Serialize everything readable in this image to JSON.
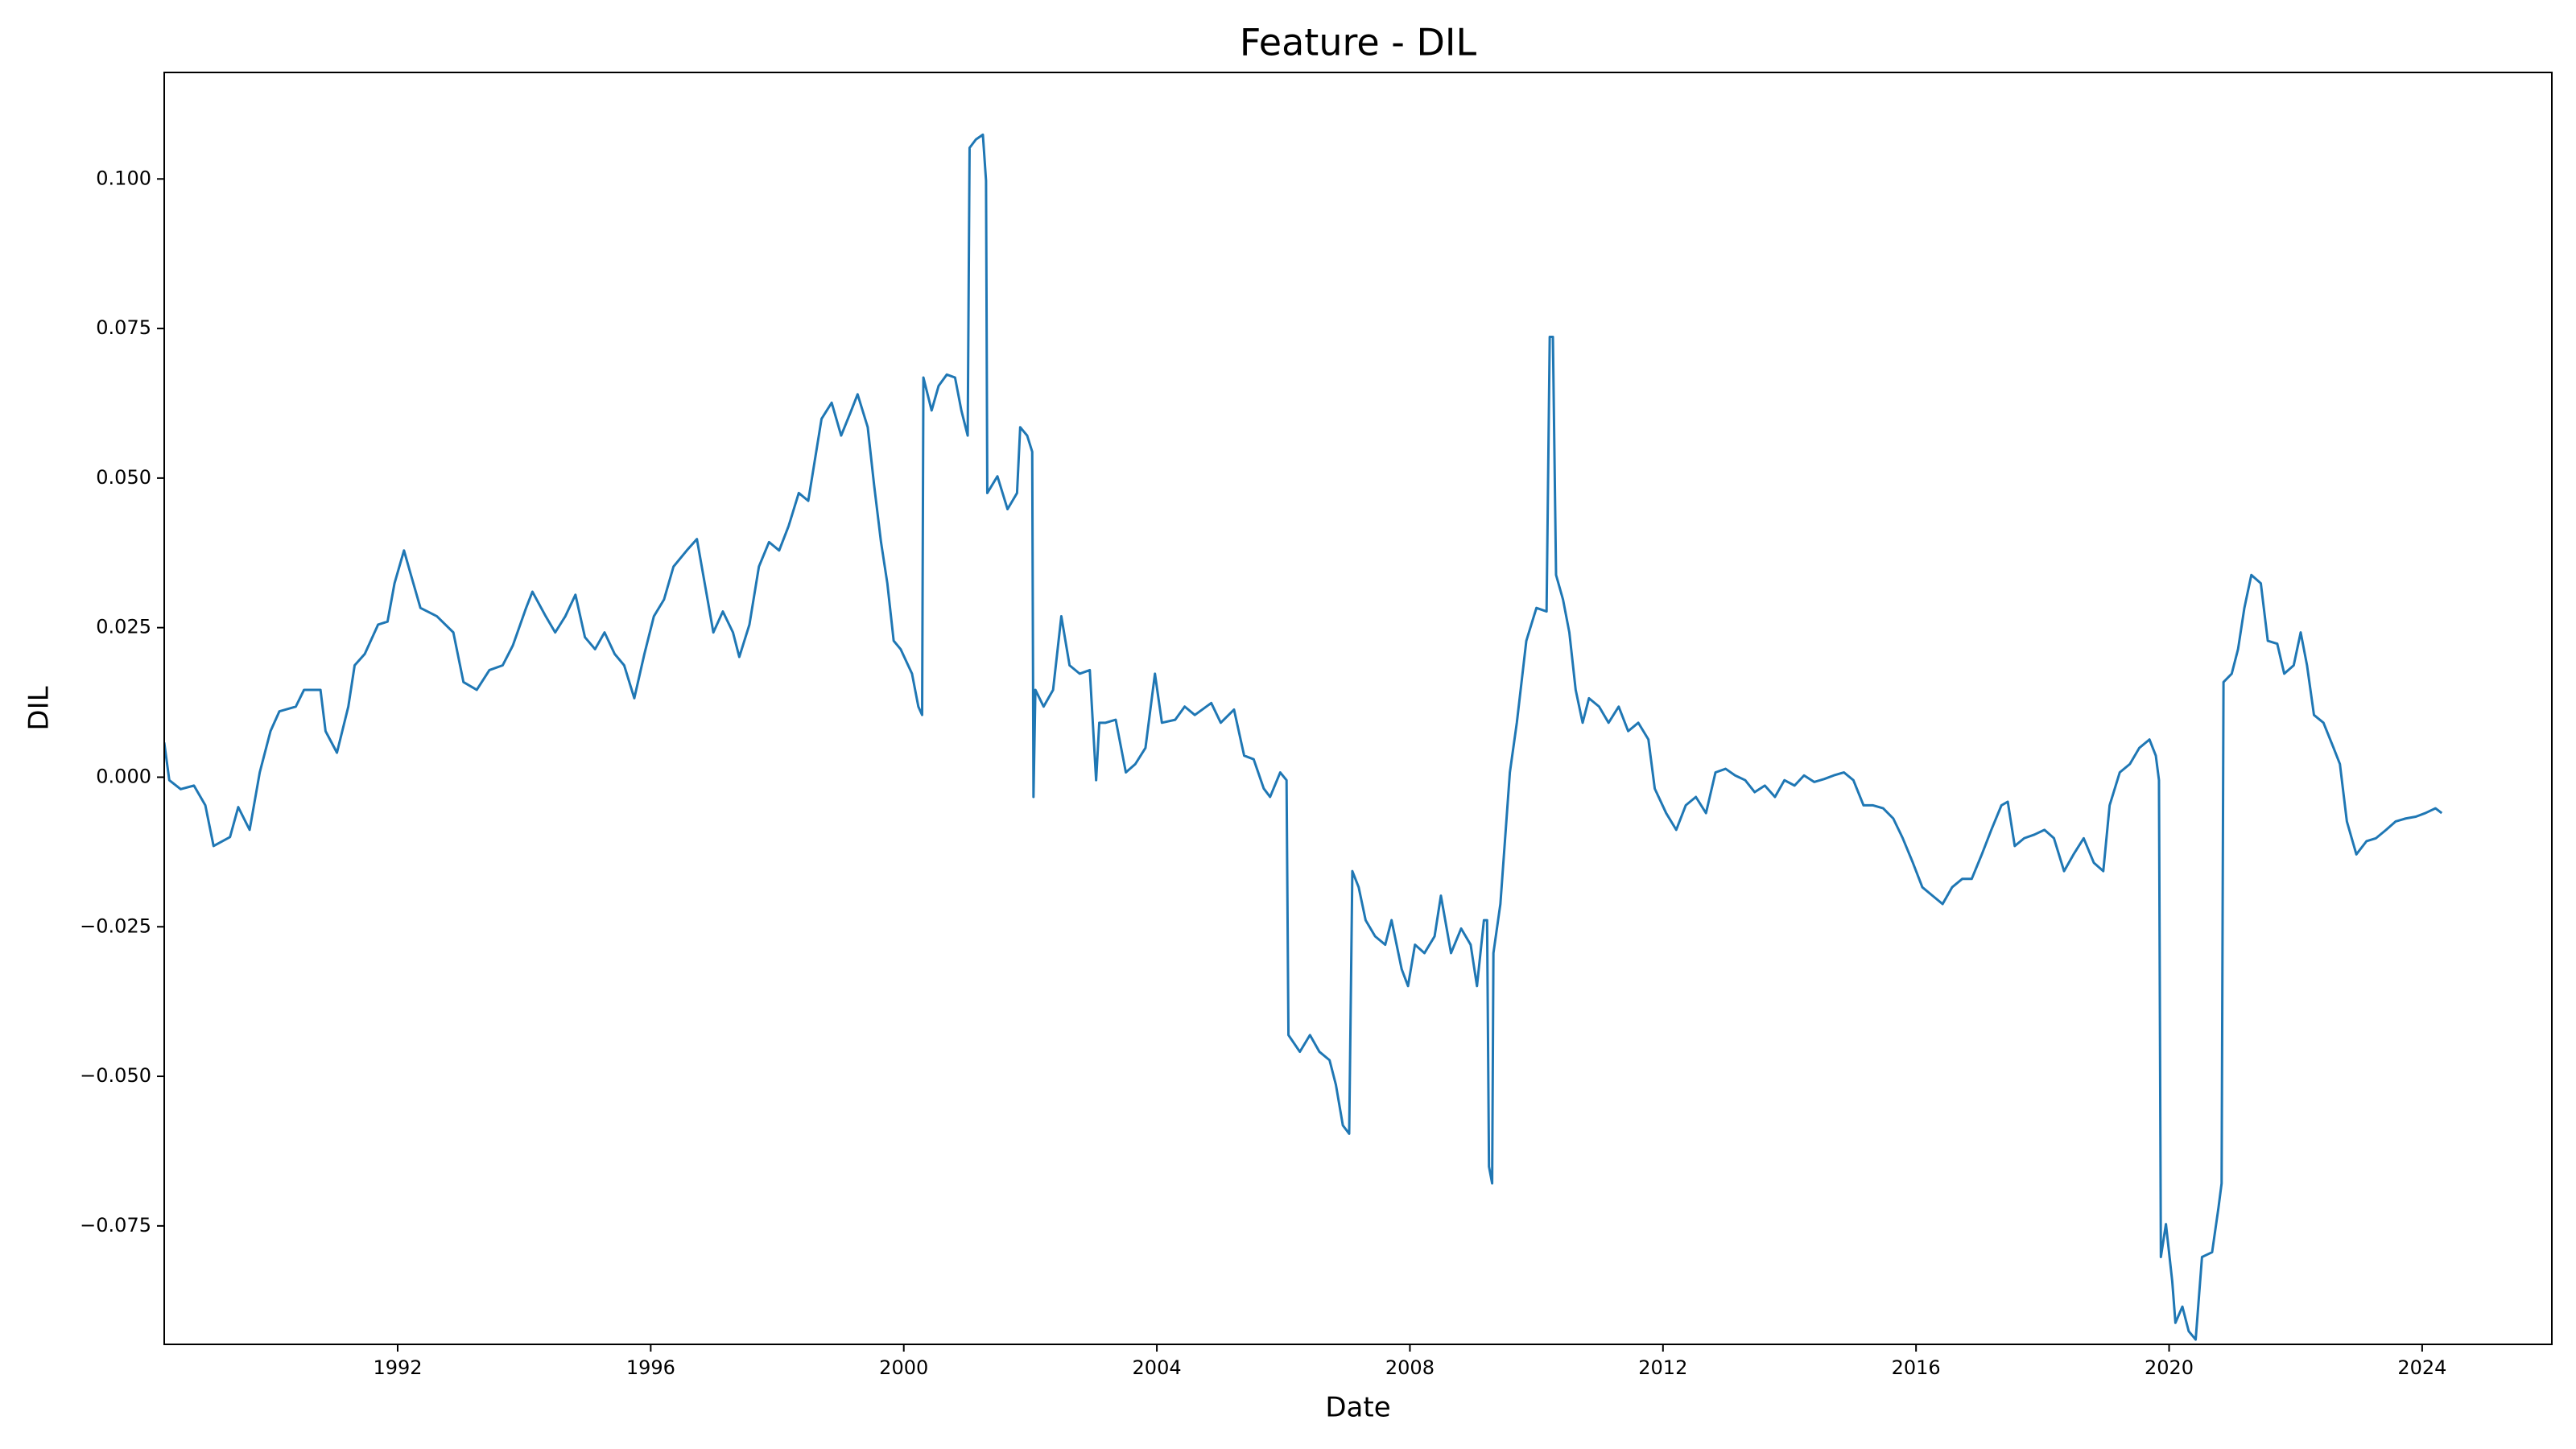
{
  "chart_data": {
    "type": "line",
    "title": "Feature - DIL",
    "x_label": "Date",
    "y_label": "DIL",
    "xlim": [
      1988.31,
      2026.05
    ],
    "ylim": [
      -0.0948,
      0.1178
    ],
    "xticks": [
      1992,
      1996,
      2000,
      2004,
      2008,
      2012,
      2016,
      2020,
      2024
    ],
    "yticks": [
      {
        "value": -0.075,
        "label": "−0.075"
      },
      {
        "value": -0.05,
        "label": "−0.050"
      },
      {
        "value": -0.025,
        "label": "−0.025"
      },
      {
        "value": 0,
        "label": "0.000"
      },
      0.025,
      {
        "value": 0.05,
        "label": "0.050"
      },
      0.075,
      {
        "value": 0.1,
        "label": "0.100"
      }
    ],
    "grid": false,
    "series": [
      {
        "color": "#1f77b4",
        "x": [
          1988.31,
          1988.39,
          1988.57,
          1988.78,
          1988.96,
          1989.09,
          1989.35,
          1989.48,
          1989.66,
          1989.82,
          1989.99,
          1990.13,
          1990.39,
          1990.52,
          1990.78,
          1990.86,
          1991.04,
          1991.22,
          1991.32,
          1991.48,
          1991.69,
          1991.84,
          1991.95,
          1992.1,
          1992.21,
          1992.36,
          1992.62,
          1992.88,
          1993.04,
          1993.25,
          1993.45,
          1993.66,
          1993.82,
          1994.03,
          1994.13,
          1994.34,
          1994.49,
          1994.65,
          1994.81,
          1994.96,
          1995.12,
          1995.27,
          1995.43,
          1995.58,
          1995.74,
          1995.9,
          1996.05,
          1996.21,
          1996.36,
          1996.57,
          1996.73,
          1996.83,
          1996.99,
          1997.14,
          1997.3,
          1997.4,
          1997.56,
          1997.71,
          1997.87,
          1998.03,
          1998.18,
          1998.34,
          1998.49,
          1998.7,
          1998.86,
          1999.01,
          1999.17,
          1999.27,
          1999.43,
          1999.53,
          1999.64,
          1999.74,
          1999.84,
          1999.95,
          2000.13,
          2000.23,
          2000.29,
          2000.31,
          2000.44,
          2000.55,
          2000.68,
          2000.81,
          2000.91,
          2001.01,
          2001.04,
          2001.14,
          2001.25,
          2001.3,
          2001.32,
          2001.48,
          2001.64,
          2001.79,
          2001.84,
          2001.95,
          2002.03,
          2002.05,
          2002.08,
          2002.21,
          2002.36,
          2002.49,
          2002.62,
          2002.78,
          2002.94,
          2003.04,
          2003.09,
          2003.19,
          2003.35,
          2003.51,
          2003.66,
          2003.82,
          2003.97,
          2004.08,
          2004.29,
          2004.44,
          2004.6,
          2004.86,
          2005.01,
          2005.22,
          2005.38,
          2005.53,
          2005.69,
          2005.79,
          2005.95,
          2006.05,
          2006.08,
          2006.26,
          2006.42,
          2006.57,
          2006.73,
          2006.83,
          2006.94,
          2007.04,
          2007.09,
          2007.19,
          2007.3,
          2007.45,
          2007.61,
          2007.71,
          2007.87,
          2007.97,
          2008.08,
          2008.23,
          2008.39,
          2008.49,
          2008.65,
          2008.81,
          2008.96,
          2009.06,
          2009.17,
          2009.22,
          2009.25,
          2009.3,
          2009.32,
          2009.43,
          2009.58,
          2009.69,
          2009.84,
          2010.0,
          2010.16,
          2010.21,
          2010.26,
          2010.31,
          2010.42,
          2010.52,
          2010.62,
          2010.73,
          2010.83,
          2010.99,
          2011.14,
          2011.3,
          2011.45,
          2011.61,
          2011.77,
          2011.87,
          2012.05,
          2012.21,
          2012.36,
          2012.52,
          2012.68,
          2012.83,
          2012.99,
          2013.14,
          2013.3,
          2013.45,
          2013.61,
          2013.77,
          2013.92,
          2014.08,
          2014.23,
          2014.39,
          2014.55,
          2014.7,
          2014.86,
          2015.01,
          2015.17,
          2015.32,
          2015.48,
          2015.64,
          2015.79,
          2015.95,
          2016.1,
          2016.26,
          2016.42,
          2016.57,
          2016.73,
          2016.88,
          2017.04,
          2017.19,
          2017.35,
          2017.45,
          2017.56,
          2017.71,
          2017.87,
          2018.03,
          2018.18,
          2018.34,
          2018.49,
          2018.65,
          2018.81,
          2018.96,
          2019.06,
          2019.22,
          2019.38,
          2019.53,
          2019.69,
          2019.79,
          2019.84,
          2019.87,
          2019.95,
          2020.05,
          2020.1,
          2020.21,
          2020.31,
          2020.42,
          2020.52,
          2020.68,
          2020.78,
          2020.83,
          2020.86,
          2020.99,
          2021.09,
          2021.19,
          2021.3,
          2021.45,
          2021.56,
          2021.71,
          2021.82,
          2021.97,
          2022.08,
          2022.18,
          2022.29,
          2022.44,
          2022.6,
          2022.7,
          2022.81,
          2022.96,
          2023.12,
          2023.27,
          2023.43,
          2023.58,
          2023.74,
          2023.9,
          2024.05,
          2024.21,
          2024.31
        ],
        "values": [
          0.0058,
          -0.0005,
          -0.002,
          -0.0014,
          -0.0047,
          -0.0115,
          -0.01,
          -0.005,
          -0.0088,
          0.0008,
          0.0077,
          0.011,
          0.0118,
          0.0146,
          0.0146,
          0.0077,
          0.0041,
          0.0118,
          0.0187,
          0.0206,
          0.0255,
          0.026,
          0.0324,
          0.0379,
          0.0338,
          0.0283,
          0.0269,
          0.0242,
          0.0159,
          0.0146,
          0.0179,
          0.0187,
          0.022,
          0.0283,
          0.031,
          0.0269,
          0.0242,
          0.0269,
          0.0305,
          0.0234,
          0.0214,
          0.0242,
          0.0206,
          0.0187,
          0.0132,
          0.0206,
          0.0269,
          0.0297,
          0.0352,
          0.0379,
          0.0398,
          0.0338,
          0.0242,
          0.0277,
          0.0242,
          0.0201,
          0.0255,
          0.0352,
          0.0393,
          0.0379,
          0.042,
          0.0475,
          0.0462,
          0.0599,
          0.0626,
          0.0571,
          0.0613,
          0.064,
          0.0585,
          0.0489,
          0.0393,
          0.0324,
          0.0228,
          0.0214,
          0.0173,
          0.0118,
          0.0104,
          0.0668,
          0.0613,
          0.0654,
          0.0673,
          0.0668,
          0.0613,
          0.0571,
          0.1052,
          0.1066,
          0.1074,
          0.0997,
          0.0475,
          0.0503,
          0.0448,
          0.0475,
          0.0585,
          0.0571,
          0.0544,
          -0.0033,
          0.0146,
          0.0118,
          0.0146,
          0.0269,
          0.0187,
          0.0173,
          0.0179,
          -0.0005,
          0.0091,
          0.0091,
          0.0096,
          0.0008,
          0.0022,
          0.0049,
          0.0173,
          0.0091,
          0.0096,
          0.0118,
          0.0104,
          0.0124,
          0.0091,
          0.0113,
          0.0036,
          0.003,
          -0.0019,
          -0.0033,
          0.0008,
          -0.0005,
          -0.0431,
          -0.0459,
          -0.0431,
          -0.0459,
          -0.0473,
          -0.0514,
          -0.0582,
          -0.0596,
          -0.0157,
          -0.0184,
          -0.0239,
          -0.0266,
          -0.028,
          -0.0239,
          -0.0321,
          -0.0349,
          -0.028,
          -0.0294,
          -0.0266,
          -0.0198,
          -0.0294,
          -0.0253,
          -0.028,
          -0.0349,
          -0.0239,
          -0.0239,
          -0.0651,
          -0.0679,
          -0.0294,
          -0.0212,
          0.0008,
          0.0091,
          0.0228,
          0.0283,
          0.0277,
          0.0736,
          0.0736,
          0.0338,
          0.0297,
          0.0242,
          0.0146,
          0.0091,
          0.0132,
          0.0118,
          0.0091,
          0.0118,
          0.0077,
          0.0091,
          0.0063,
          -0.0019,
          -0.006,
          -0.0088,
          -0.0047,
          -0.0033,
          -0.006,
          0.0008,
          0.0014,
          0.0003,
          -0.0005,
          -0.0025,
          -0.0014,
          -0.0033,
          -0.0005,
          -0.0014,
          0.0003,
          -0.0008,
          -0.0003,
          0.0003,
          0.0008,
          -0.0005,
          -0.0047,
          -0.0047,
          -0.0052,
          -0.0069,
          -0.0102,
          -0.0143,
          -0.0184,
          -0.0198,
          -0.0212,
          -0.0184,
          -0.017,
          -0.017,
          -0.0129,
          -0.0088,
          -0.0047,
          -0.0041,
          -0.0115,
          -0.0102,
          -0.0096,
          -0.0088,
          -0.0102,
          -0.0157,
          -0.0129,
          -0.0102,
          -0.0143,
          -0.0157,
          -0.0047,
          0.0008,
          0.0022,
          0.0049,
          0.0063,
          0.0036,
          -0.0005,
          -0.0802,
          -0.0747,
          -0.0843,
          -0.0912,
          -0.0885,
          -0.0926,
          -0.094,
          -0.0802,
          -0.0794,
          -0.072,
          -0.0679,
          0.0159,
          0.0173,
          0.0214,
          0.0283,
          0.0338,
          0.0324,
          0.0228,
          0.0223,
          0.0173,
          0.0187,
          0.0242,
          0.0187,
          0.0104,
          0.0091,
          0.0049,
          0.0022,
          -0.0074,
          -0.0129,
          -0.0107,
          -0.0102,
          -0.0088,
          -0.0074,
          -0.0069,
          -0.0066,
          -0.006,
          -0.0052,
          -0.006
        ]
      }
    ]
  }
}
